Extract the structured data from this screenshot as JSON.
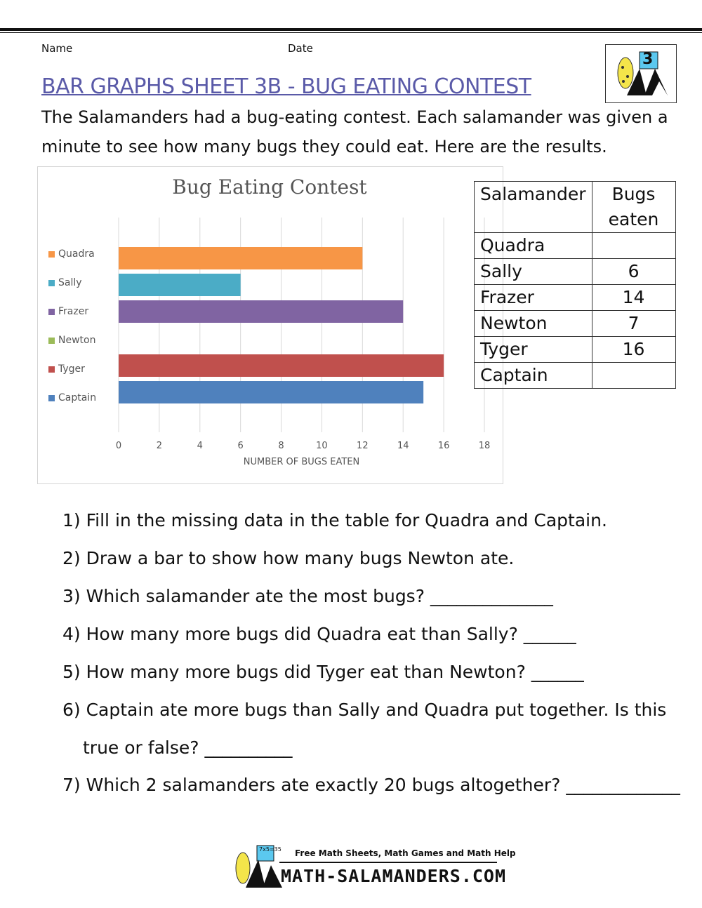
{
  "header": {
    "name_label": "Name",
    "date_label": "Date",
    "grade_badge": "3"
  },
  "title": "BAR GRAPHS SHEET 3B - BUG EATING CONTEST",
  "intro": "The Salamanders had a bug-eating contest. Each salamander was given a minute to see how many bugs they could eat. Here are the results.",
  "chart_data": {
    "type": "bar",
    "orientation": "horizontal",
    "title": "Bug Eating Contest",
    "xlabel": "NUMBER OF BUGS EATEN",
    "ylabel": "",
    "xlim": [
      0,
      18
    ],
    "ticks": [
      "0",
      "2",
      "4",
      "6",
      "8",
      "10",
      "12",
      "14",
      "16",
      "18"
    ],
    "grid": true,
    "legend_position": "left",
    "categories": [
      "Quadra",
      "Sally",
      "Frazer",
      "Newton",
      "Tyger",
      "Captain"
    ],
    "values": [
      12,
      6,
      14,
      null,
      16,
      15
    ],
    "colors": [
      "#f79646",
      "#4bacc6",
      "#8064a2",
      "#9bbb59",
      "#c0504d",
      "#4f81bd"
    ]
  },
  "table": {
    "headers": [
      "Salamander",
      "Bugs eaten"
    ],
    "rows": [
      {
        "name": "Quadra",
        "value": ""
      },
      {
        "name": "Sally",
        "value": "6"
      },
      {
        "name": "Frazer",
        "value": "14"
      },
      {
        "name": "Newton",
        "value": "7"
      },
      {
        "name": "Tyger",
        "value": "16"
      },
      {
        "name": "Captain",
        "value": ""
      }
    ]
  },
  "questions": [
    "1) Fill in the missing data in the table for Quadra and Captain.",
    "2) Draw a bar to show how many bugs Newton ate.",
    "3) Which salamander ate the most bugs? ______________",
    "4) How many more bugs did Quadra eat than Sally? ______",
    "5) How many more bugs did Tyger eat than Newton? ______",
    "6) Captain ate more bugs than Sally and Quadra put together. Is this",
    "true or false? __________",
    "7) Which 2 salamanders ate exactly 20 bugs altogether? _____________"
  ],
  "footer": {
    "tagline": "Free Math Sheets, Math Games and Math Help",
    "site": "MATH-SALAMANDERS.COM",
    "board_text": "7x5=35"
  }
}
